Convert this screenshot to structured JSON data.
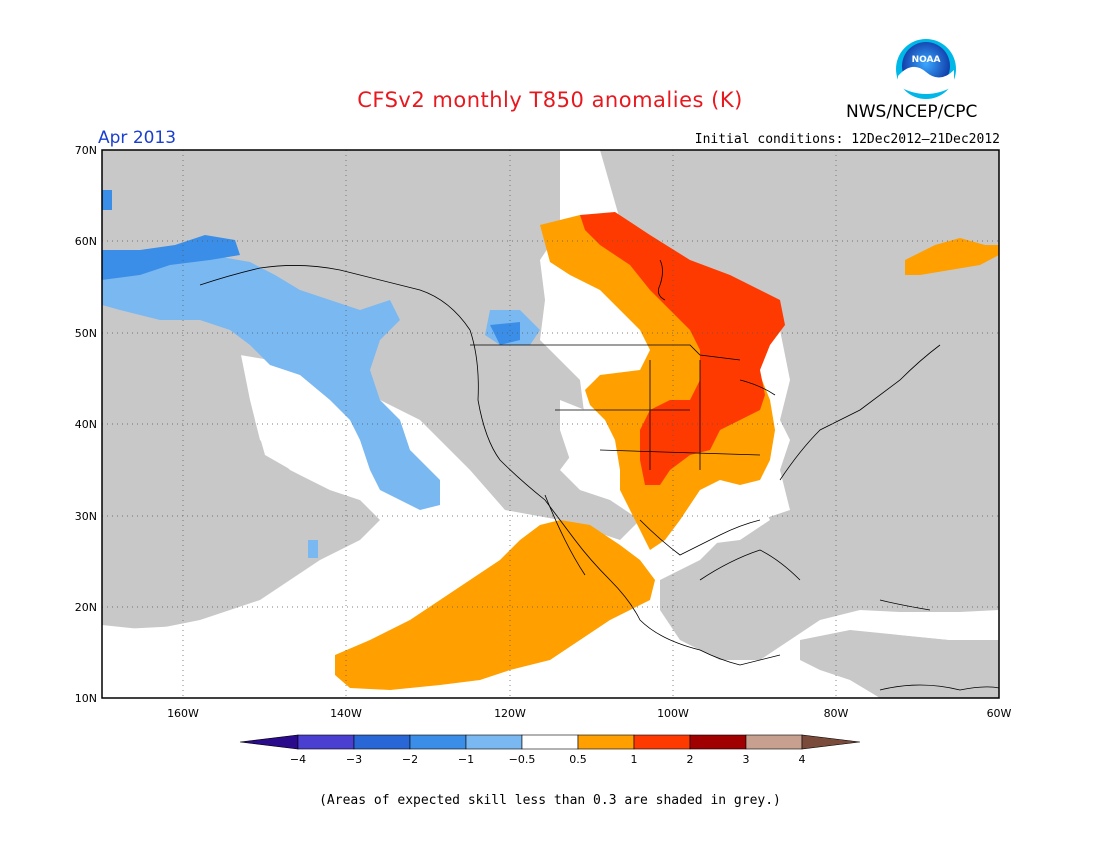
{
  "header": {
    "title": "CFSv2 monthly T850 anomalies (K)",
    "agency": "NWS/NCEP/CPC",
    "period": "Apr 2013",
    "initial_conditions": "Initial conditions: 12Dec2012–21Dec2012",
    "logo_text": "NOAA"
  },
  "map": {
    "lon_range": [
      -171,
      -60
    ],
    "lat_range": [
      10,
      70
    ],
    "lat_labels": [
      "70N",
      "60N",
      "50N",
      "40N",
      "30N",
      "20N",
      "10N"
    ],
    "lon_labels": [
      "160W",
      "140W",
      "120W",
      "100W",
      "80W",
      "60W"
    ],
    "colors": {
      "skill_grey": "#c8c8c8",
      "land_outline": "#000000"
    }
  },
  "legend": {
    "labels": [
      "−4",
      "−3",
      "−2",
      "−1",
      "−0.5",
      "0.5",
      "1",
      "2",
      "3",
      "4"
    ],
    "colors": [
      "#2a0b8c",
      "#4a3fd0",
      "#2a67d6",
      "#3a8ee8",
      "#7ab8f2",
      "#ffffff",
      "#ff9f00",
      "#ff3a00",
      "#a00000",
      "#c8a090",
      "#7a4a3a"
    ]
  },
  "footer": {
    "note": "(Areas of expected skill less than 0.3 are shaded in grey.)"
  }
}
